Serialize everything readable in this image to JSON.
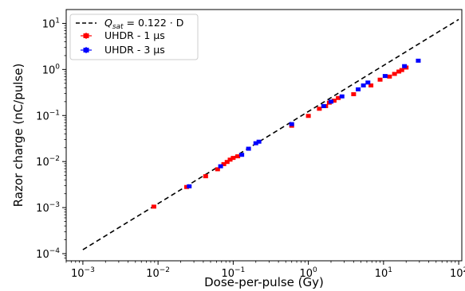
{
  "chart_data": {
    "type": "scatter",
    "xlabel": "Dose-per-pulse (Gy)",
    "ylabel": "Razor charge (nC/pulse)",
    "xscale": "log",
    "yscale": "log",
    "xlim": [
      0.0006,
      110
    ],
    "ylim": [
      7e-05,
      20
    ],
    "grid": false,
    "legend_position": "top-left",
    "xticks": [
      {
        "base": "10",
        "exp": "−3",
        "value": 0.001
      },
      {
        "base": "10",
        "exp": "−2",
        "value": 0.01
      },
      {
        "base": "10",
        "exp": "−1",
        "value": 0.1
      },
      {
        "base": "10",
        "exp": "0",
        "value": 1
      },
      {
        "base": "10",
        "exp": "1",
        "value": 10
      },
      {
        "base": "10",
        "exp": "2",
        "value": 100
      }
    ],
    "yticks": [
      {
        "base": "10",
        "exp": "−4",
        "value": 0.0001
      },
      {
        "base": "10",
        "exp": "−3",
        "value": 0.001
      },
      {
        "base": "10",
        "exp": "−2",
        "value": 0.01
      },
      {
        "base": "10",
        "exp": "−1",
        "value": 0.1
      },
      {
        "base": "10",
        "exp": "0",
        "value": 1
      },
      {
        "base": "10",
        "exp": "1",
        "value": 10
      }
    ],
    "fit_line": {
      "name": "Q_sat = 0.122 · D",
      "legend_main": "Q",
      "legend_sub": "sat",
      "legend_rest": " = 0.122 · D",
      "slope": 0.122,
      "x_range": [
        0.001,
        100
      ],
      "color": "#000000",
      "dash": true
    },
    "series": [
      {
        "name": "UHDR - 1 µs",
        "color": "#ff0000",
        "points": [
          [
            0.0088,
            0.00105
          ],
          [
            0.024,
            0.0028
          ],
          [
            0.043,
            0.0048
          ],
          [
            0.062,
            0.0068
          ],
          [
            0.075,
            0.0088
          ],
          [
            0.083,
            0.0098
          ],
          [
            0.091,
            0.011
          ],
          [
            0.1,
            0.012
          ],
          [
            0.115,
            0.013
          ],
          [
            0.6,
            0.06
          ],
          [
            1.0,
            0.098
          ],
          [
            1.4,
            0.14
          ],
          [
            1.7,
            0.16
          ],
          [
            1.9,
            0.19
          ],
          [
            2.2,
            0.21
          ],
          [
            2.5,
            0.24
          ],
          [
            4.0,
            0.29
          ],
          [
            6.8,
            0.45
          ],
          [
            9.0,
            0.6
          ],
          [
            12.0,
            0.7
          ],
          [
            14.0,
            0.8
          ],
          [
            16.0,
            0.9
          ],
          [
            17.5,
            0.97
          ],
          [
            20.0,
            1.1
          ]
        ]
      },
      {
        "name": "UHDR - 3 µs",
        "color": "#0000ff",
        "points": [
          [
            0.026,
            0.0029
          ],
          [
            0.068,
            0.0079
          ],
          [
            0.13,
            0.014
          ],
          [
            0.16,
            0.019
          ],
          [
            0.2,
            0.025
          ],
          [
            0.22,
            0.027
          ],
          [
            0.6,
            0.065
          ],
          [
            1.6,
            0.16
          ],
          [
            2.0,
            0.2
          ],
          [
            2.8,
            0.26
          ],
          [
            4.6,
            0.37
          ],
          [
            5.4,
            0.45
          ],
          [
            6.2,
            0.52
          ],
          [
            10.5,
            0.72
          ],
          [
            19.0,
            1.18
          ],
          [
            29.0,
            1.55
          ]
        ]
      }
    ]
  }
}
